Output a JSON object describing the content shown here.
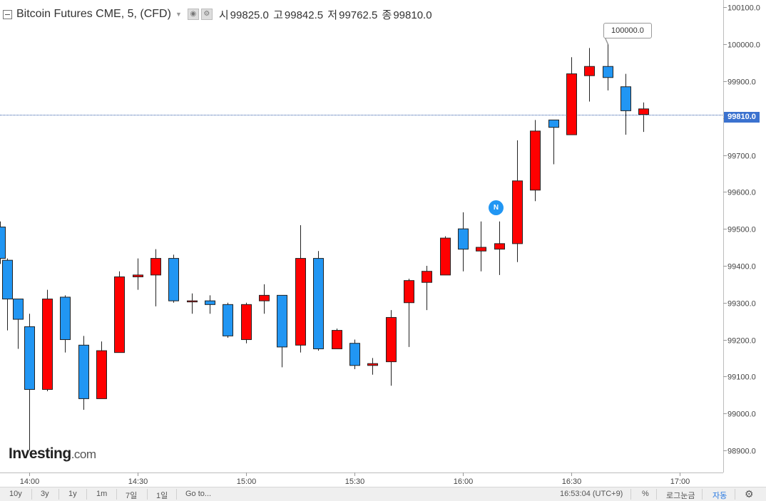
{
  "header": {
    "symbol": "Bitcoin Futures CME, 5, (CFD)",
    "ohlc": [
      {
        "label": "시",
        "value": "99825.0"
      },
      {
        "label": "고",
        "value": "99842.5"
      },
      {
        "label": "저",
        "value": "99762.5"
      },
      {
        "label": "종",
        "value": "99810.0"
      }
    ]
  },
  "current_price": "99810.0",
  "callout_label": "100000.0",
  "news_badge": "N",
  "logo": {
    "main": "Investing",
    "suffix": ".com"
  },
  "bottom_bar": {
    "ranges": [
      "10y",
      "3y",
      "1y",
      "1m",
      "7일",
      "1일"
    ],
    "goto": "Go to...",
    "clock": "16:53:04 (UTC+9)",
    "percent": "%",
    "log": "로그눈금",
    "auto": "자동"
  },
  "colors": {
    "up": "#2196f3",
    "down": "#ff0000",
    "price_line": "#2e59a8",
    "background": "#ffffff"
  },
  "chart_data": {
    "type": "candlestick",
    "interval_minutes": 5,
    "x_ticks": [
      "14:00",
      "14:30",
      "15:00",
      "15:30",
      "16:00",
      "16:30",
      "17:00"
    ],
    "y_ticks": [
      "100100.0",
      "100000.0",
      "99900.0",
      "99800.0",
      "99700.0",
      "99600.0",
      "99500.0",
      "99400.0",
      "99300.0",
      "99200.0",
      "99100.0",
      "99000.0",
      "98900.0"
    ],
    "ylim": [
      98840,
      100120
    ],
    "xlim": [
      "13:52",
      "17:12"
    ],
    "candles": [
      {
        "t": "13:52",
        "open": 99420,
        "high": 99520,
        "low": 99405,
        "close": 99505
      },
      {
        "t": "13:54",
        "open": 99310,
        "high": 99420,
        "low": 99225,
        "close": 99415
      },
      {
        "t": "13:57",
        "open": 99255,
        "high": 99310,
        "low": 99175,
        "close": 99310
      },
      {
        "t": "14:00",
        "open": 99065,
        "high": 99270,
        "low": 98900,
        "close": 99235
      },
      {
        "t": "14:05",
        "open": 99310,
        "high": 99335,
        "low": 99060,
        "close": 99065
      },
      {
        "t": "14:10",
        "open": 99200,
        "high": 99320,
        "low": 99165,
        "close": 99315
      },
      {
        "t": "14:15",
        "open": 99040,
        "high": 99210,
        "low": 99010,
        "close": 99185
      },
      {
        "t": "14:20",
        "open": 99170,
        "high": 99195,
        "low": 99040,
        "close": 99040
      },
      {
        "t": "14:25",
        "open": 99370,
        "high": 99385,
        "low": 99165,
        "close": 99165
      },
      {
        "t": "14:30",
        "open": 99375,
        "high": 99420,
        "low": 99335,
        "close": 99370
      },
      {
        "t": "14:35",
        "open": 99420,
        "high": 99445,
        "low": 99290,
        "close": 99375
      },
      {
        "t": "14:40",
        "open": 99305,
        "high": 99430,
        "low": 99300,
        "close": 99420
      },
      {
        "t": "14:45",
        "open": 99305,
        "high": 99325,
        "low": 99270,
        "close": 99303
      },
      {
        "t": "14:50",
        "open": 99295,
        "high": 99320,
        "low": 99270,
        "close": 99305
      },
      {
        "t": "14:55",
        "open": 99210,
        "high": 99300,
        "low": 99205,
        "close": 99295
      },
      {
        "t": "15:00",
        "open": 99295,
        "high": 99300,
        "low": 99190,
        "close": 99200
      },
      {
        "t": "15:05",
        "open": 99320,
        "high": 99350,
        "low": 99270,
        "close": 99305
      },
      {
        "t": "15:10",
        "open": 99180,
        "high": 99320,
        "low": 99125,
        "close": 99320
      },
      {
        "t": "15:15",
        "open": 99420,
        "high": 99510,
        "low": 99165,
        "close": 99185
      },
      {
        "t": "15:20",
        "open": 99175,
        "high": 99440,
        "low": 99170,
        "close": 99420
      },
      {
        "t": "15:25",
        "open": 99225,
        "high": 99230,
        "low": 99175,
        "close": 99175
      },
      {
        "t": "15:30",
        "open": 99130,
        "high": 99200,
        "low": 99120,
        "close": 99190
      },
      {
        "t": "15:35",
        "open": 99135,
        "high": 99150,
        "low": 99105,
        "close": 99130
      },
      {
        "t": "15:40",
        "open": 99260,
        "high": 99280,
        "low": 99075,
        "close": 99140
      },
      {
        "t": "15:45",
        "open": 99360,
        "high": 99365,
        "low": 99180,
        "close": 99300
      },
      {
        "t": "15:50",
        "open": 99385,
        "high": 99400,
        "low": 99280,
        "close": 99355
      },
      {
        "t": "15:55",
        "open": 99475,
        "high": 99480,
        "low": 99375,
        "close": 99375
      },
      {
        "t": "16:00",
        "open": 99445,
        "high": 99545,
        "low": 99385,
        "close": 99500
      },
      {
        "t": "16:05",
        "open": 99450,
        "high": 99520,
        "low": 99385,
        "close": 99440
      },
      {
        "t": "16:10",
        "open": 99460,
        "high": 99520,
        "low": 99375,
        "close": 99445
      },
      {
        "t": "16:15",
        "open": 99630,
        "high": 99740,
        "low": 99410,
        "close": 99460
      },
      {
        "t": "16:20",
        "open": 99765,
        "high": 99795,
        "low": 99575,
        "close": 99605
      },
      {
        "t": "16:25",
        "open": 99775,
        "high": 99795,
        "low": 99675,
        "close": 99795
      },
      {
        "t": "16:30",
        "open": 99920,
        "high": 99965,
        "low": 99755,
        "close": 99755
      },
      {
        "t": "16:35",
        "open": 99940,
        "high": 99990,
        "low": 99845,
        "close": 99915
      },
      {
        "t": "16:40",
        "open": 99910,
        "high": 100000,
        "low": 99875,
        "close": 99940
      },
      {
        "t": "16:45",
        "open": 99820,
        "high": 99920,
        "low": 99755,
        "close": 99885
      },
      {
        "t": "16:50",
        "open": 99825,
        "high": 99842.5,
        "low": 99762.5,
        "close": 99810
      }
    ]
  }
}
